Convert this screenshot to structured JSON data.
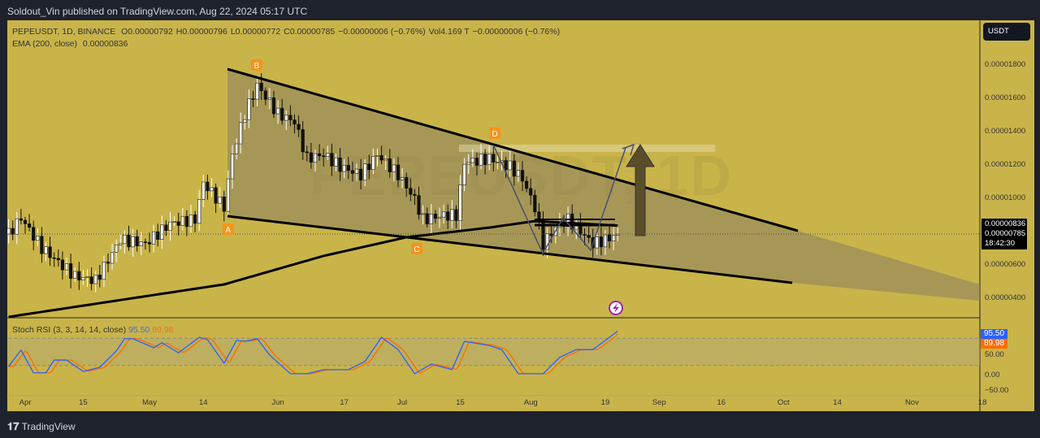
{
  "publish_bar": "Soldout_Vin published on TradingView.com, Aug 22, 2024 05:17 UTC",
  "legend": {
    "symbol": "PEPEUSDT, 1D, BINANCE",
    "open": "O0.00000792",
    "high": "H0.00000796",
    "low": "L0.00000772",
    "close": "C0.00000785",
    "change": "−0.00000006 (−0.76%)",
    "vol_label": "Vol",
    "vol": "4.169 T",
    "vol_change": "−0.00000006 (−0.76%)",
    "ema": "EMA (200, close)",
    "ema_value": "0.00000836"
  },
  "watermark": "PEPEUSDT, 1D",
  "currency": "USDT",
  "price_axis": [
    "0.00001800",
    "0.00001600",
    "0.00001400",
    "0.00001200",
    "0.00001000",
    "0.00000600",
    "0.00000400"
  ],
  "last": {
    "ema": "0.00000836",
    "price": "0.00000785",
    "countdown": "18:42:30"
  },
  "pattern_labels": [
    "A",
    "B",
    "C",
    "D"
  ],
  "rsi": {
    "title": "Stoch RSI (3, 3, 14, 14, close)",
    "k": "95.50",
    "d": "89.98",
    "k_color": "#2962ff",
    "d_color": "#ff6d00",
    "axis": [
      "50.00",
      "0.00",
      "−50.00"
    ]
  },
  "time_axis": [
    {
      "l": "Apr",
      "d": 0
    },
    {
      "l": "15",
      "d": 14
    },
    {
      "l": "May",
      "d": 30
    },
    {
      "l": "14",
      "d": 43
    },
    {
      "l": "Jun",
      "d": 61
    },
    {
      "l": "17",
      "d": 77
    },
    {
      "l": "Jul",
      "d": 91
    },
    {
      "l": "15",
      "d": 105
    },
    {
      "l": "Aug",
      "d": 122
    },
    {
      "l": "19",
      "d": 140
    },
    {
      "l": "Sep",
      "d": 153
    },
    {
      "l": "16",
      "d": 168
    },
    {
      "l": "Oct",
      "d": 183
    },
    {
      "l": "14",
      "d": 196
    },
    {
      "l": "Nov",
      "d": 214
    },
    {
      "l": "18",
      "d": 231
    }
  ],
  "brand": "TradingView",
  "chart_data": {
    "type": "candlestick",
    "symbol": "PEPEUSDT",
    "interval": "1D",
    "price_unit": "1e-8 USDT",
    "close_path": [
      [
        -4,
        785
      ],
      [
        -1,
        883
      ],
      [
        4,
        702
      ],
      [
        12,
        532
      ],
      [
        17,
        507
      ],
      [
        23,
        751
      ],
      [
        29,
        727
      ],
      [
        35,
        849
      ],
      [
        41,
        873
      ],
      [
        43,
        1093
      ],
      [
        48,
        946
      ],
      [
        50,
        1263
      ],
      [
        53,
        1507
      ],
      [
        56,
        1678
      ],
      [
        61,
        1507
      ],
      [
        65,
        1459
      ],
      [
        68,
        1239
      ],
      [
        72,
        1263
      ],
      [
        76,
        1190
      ],
      [
        81,
        1141
      ],
      [
        85,
        1263
      ],
      [
        90,
        1141
      ],
      [
        94,
        995
      ],
      [
        96,
        873
      ],
      [
        101,
        898
      ],
      [
        104,
        898
      ],
      [
        106,
        1215
      ],
      [
        112,
        1239
      ],
      [
        117,
        1190
      ],
      [
        120,
        1117
      ],
      [
        123,
        946
      ],
      [
        125,
        727
      ],
      [
        128,
        824
      ],
      [
        131,
        873
      ],
      [
        135,
        776
      ],
      [
        137,
        727
      ],
      [
        140,
        751
      ],
      [
        143,
        785
      ]
    ],
    "ema200": [
      [
        -4,
        288
      ],
      [
        48,
        483
      ],
      [
        72,
        654
      ],
      [
        92,
        766
      ],
      [
        112,
        824
      ],
      [
        123,
        863
      ],
      [
        143,
        836
      ]
    ],
    "stoch_k": [
      [
        -4,
        18
      ],
      [
        -1,
        54
      ],
      [
        2,
        4
      ],
      [
        5,
        4
      ],
      [
        7,
        32
      ],
      [
        10,
        32
      ],
      [
        14,
        7
      ],
      [
        18,
        16
      ],
      [
        22,
        52
      ],
      [
        24,
        79
      ],
      [
        26,
        79
      ],
      [
        31,
        59
      ],
      [
        33,
        70
      ],
      [
        37,
        48
      ],
      [
        42,
        82
      ],
      [
        44,
        77
      ],
      [
        48,
        25
      ],
      [
        51,
        75
      ],
      [
        53,
        73
      ],
      [
        56,
        79
      ],
      [
        59,
        43
      ],
      [
        64,
        2
      ],
      [
        68,
        2
      ],
      [
        72,
        11
      ],
      [
        78,
        11
      ],
      [
        82,
        29
      ],
      [
        86,
        82
      ],
      [
        90,
        55
      ],
      [
        94,
        2
      ],
      [
        98,
        23
      ],
      [
        103,
        11
      ],
      [
        106,
        73
      ],
      [
        112,
        64
      ],
      [
        115,
        55
      ],
      [
        119,
        2
      ],
      [
        125,
        2
      ],
      [
        129,
        38
      ],
      [
        133,
        55
      ],
      [
        137,
        55
      ],
      [
        143,
        95.5
      ]
    ],
    "ylim": [
      400,
      1800
    ]
  }
}
